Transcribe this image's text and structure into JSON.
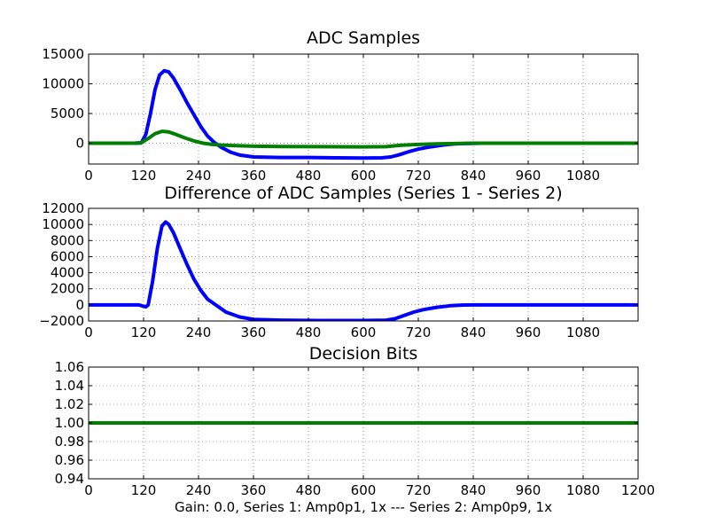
{
  "footer_text": "Gain: 0.0, Series 1: Amp0p1, 1x --- Series 2: Amp0p9, 1x",
  "chart_data": [
    {
      "type": "line",
      "title": "ADC Samples",
      "xlabel": "",
      "ylabel": "",
      "xlim": [
        0,
        1200
      ],
      "ylim": [
        -3500,
        15000
      ],
      "grid": true,
      "xticks": [
        0,
        120,
        240,
        360,
        480,
        600,
        720,
        840,
        960,
        1080
      ],
      "yticks": [
        0,
        5000,
        10000,
        15000
      ],
      "series": [
        {
          "color": "#0000ff",
          "x": [
            0,
            100,
            115,
            125,
            135,
            145,
            155,
            165,
            175,
            185,
            200,
            215,
            230,
            245,
            260,
            275,
            290,
            310,
            330,
            360,
            420,
            480,
            540,
            600,
            640,
            660,
            680,
            700,
            720,
            740,
            760,
            780,
            800,
            820,
            840,
            860
          ],
          "y": [
            0,
            0,
            50,
            1500,
            5000,
            9000,
            11500,
            12200,
            12000,
            11000,
            9000,
            6800,
            4800,
            2800,
            1200,
            100,
            -700,
            -1500,
            -2000,
            -2300,
            -2400,
            -2400,
            -2450,
            -2500,
            -2450,
            -2300,
            -1900,
            -1400,
            -1000,
            -700,
            -450,
            -250,
            -120,
            -50,
            -20,
            0
          ]
        },
        {
          "color": "#007f00",
          "x": [
            0,
            100,
            115,
            130,
            145,
            160,
            175,
            190,
            210,
            230,
            250,
            270,
            290,
            320,
            360,
            420,
            500,
            600,
            650,
            660,
            680,
            720,
            760,
            800,
            840,
            900,
            1000,
            1100,
            1200
          ],
          "y": [
            0,
            0,
            100,
            800,
            1600,
            2000,
            1900,
            1500,
            900,
            400,
            0,
            -200,
            -300,
            -400,
            -500,
            -550,
            -580,
            -600,
            -580,
            -500,
            -350,
            -200,
            -100,
            -50,
            0,
            0,
            0,
            0,
            0
          ]
        }
      ]
    },
    {
      "type": "line",
      "title": "Difference of ADC Samples (Series 1 - Series 2)",
      "xlabel": "",
      "ylabel": "",
      "xlim": [
        0,
        1200
      ],
      "ylim": [
        -2000,
        12000
      ],
      "grid": true,
      "xticks": [
        0,
        120,
        240,
        360,
        480,
        600,
        720,
        840,
        960,
        1080
      ],
      "yticks": [
        -2000,
        0,
        2000,
        4000,
        6000,
        8000,
        10000,
        12000
      ],
      "ytick_labels": [
        "−2000",
        "0",
        "2000",
        "4000",
        "6000",
        "8000",
        "10000",
        "12000"
      ],
      "series": [
        {
          "color": "#0000ff",
          "x": [
            0,
            110,
            118,
            125,
            130,
            140,
            150,
            160,
            168,
            175,
            185,
            200,
            215,
            230,
            245,
            260,
            280,
            300,
            330,
            360,
            420,
            500,
            600,
            650,
            670,
            690,
            710,
            730,
            760,
            790,
            820,
            850,
            900,
            1000,
            1100,
            1200
          ],
          "y": [
            0,
            0,
            -150,
            -250,
            0,
            3000,
            7000,
            9800,
            10300,
            10000,
            9000,
            7000,
            5000,
            3200,
            1800,
            700,
            -100,
            -900,
            -1500,
            -1800,
            -1900,
            -1950,
            -1950,
            -1900,
            -1700,
            -1300,
            -900,
            -600,
            -300,
            -100,
            -20,
            0,
            0,
            0,
            0,
            0
          ]
        }
      ]
    },
    {
      "type": "line",
      "title": "Decision Bits",
      "xlabel": "Gain: 0.0, Series 1: Amp0p1, 1x --- Series 2: Amp0p9, 1x",
      "ylabel": "",
      "xlim": [
        0,
        1200
      ],
      "ylim": [
        0.94,
        1.06
      ],
      "grid": true,
      "xticks": [
        0,
        120,
        240,
        360,
        480,
        600,
        720,
        840,
        960,
        1080,
        1200
      ],
      "yticks": [
        0.94,
        0.96,
        0.98,
        1.0,
        1.02,
        1.04,
        1.06
      ],
      "ytick_labels": [
        "0.94",
        "0.96",
        "0.98",
        "1.00",
        "1.02",
        "1.04",
        "1.06"
      ],
      "series": [
        {
          "color": "#007f00",
          "x": [
            0,
            1200
          ],
          "y": [
            1.0,
            1.0
          ]
        }
      ]
    }
  ]
}
